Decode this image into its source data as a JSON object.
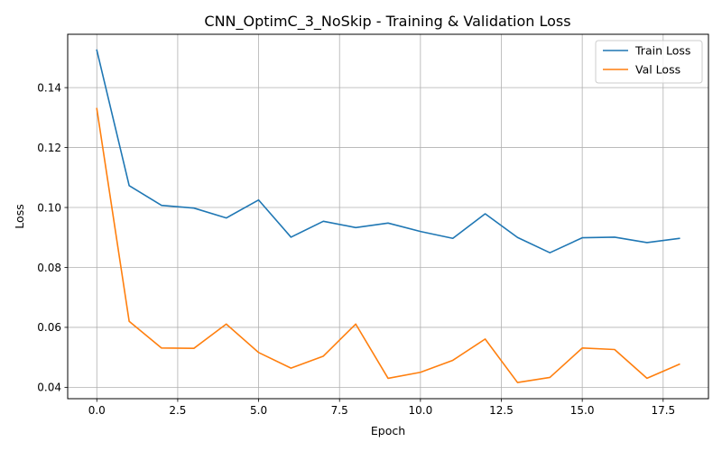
{
  "chart_data": {
    "type": "line",
    "title": "CNN_OptimC_3_NoSkip - Training & Validation Loss",
    "xlabel": "Epoch",
    "ylabel": "Loss",
    "xlim": [
      -0.9,
      18.9
    ],
    "ylim": [
      0.0362,
      0.1578
    ],
    "xticks": [
      0.0,
      2.5,
      5.0,
      7.5,
      10.0,
      12.5,
      15.0,
      17.5
    ],
    "xtick_labels": [
      "0.0",
      "2.5",
      "5.0",
      "7.5",
      "10.0",
      "12.5",
      "15.0",
      "17.5"
    ],
    "yticks": [
      0.04,
      0.06,
      0.08,
      0.1,
      0.12,
      0.14
    ],
    "ytick_labels": [
      "0.04",
      "0.06",
      "0.08",
      "0.10",
      "0.12",
      "0.14"
    ],
    "grid": true,
    "legend_position": "top-right",
    "x": [
      0,
      1,
      2,
      3,
      4,
      5,
      6,
      7,
      8,
      9,
      10,
      11,
      12,
      13,
      14,
      15,
      16,
      17,
      18
    ],
    "series": [
      {
        "name": "Train Loss",
        "color": "#1f77b4",
        "values": [
          0.1525,
          0.1073,
          0.1007,
          0.0998,
          0.0965,
          0.1025,
          0.0901,
          0.0954,
          0.0933,
          0.0948,
          0.092,
          0.0897,
          0.0979,
          0.09,
          0.0849,
          0.0899,
          0.0901,
          0.0883,
          0.0897
        ]
      },
      {
        "name": "Val Loss",
        "color": "#ff7f0e",
        "values": [
          0.133,
          0.062,
          0.0531,
          0.053,
          0.0611,
          0.0516,
          0.0464,
          0.0504,
          0.0611,
          0.043,
          0.045,
          0.049,
          0.0561,
          0.0416,
          0.0433,
          0.0531,
          0.0526,
          0.043,
          0.0477
        ]
      }
    ]
  }
}
